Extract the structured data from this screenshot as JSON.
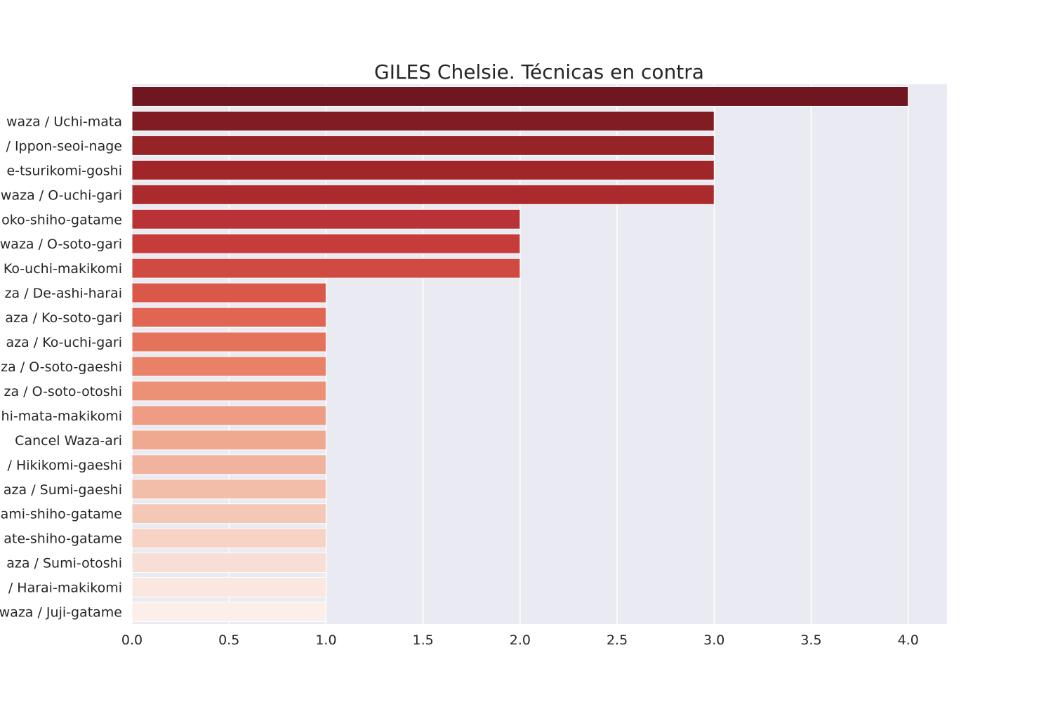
{
  "chart_data": {
    "type": "bar",
    "orientation": "horizontal",
    "title": "GILES Chelsie. Técnicas en contra",
    "xlabel": "",
    "ylabel": "",
    "xlim": [
      0,
      4.2
    ],
    "x_ticks": [
      "0.0",
      "0.5",
      "1.0",
      "1.5",
      "2.0",
      "2.5",
      "3.0",
      "3.5",
      "4.0"
    ],
    "grid": true,
    "legend": "none",
    "categories": [
      "",
      "waza / Uchi-mata",
      "/ Ippon-seoi-nage",
      "e-tsurikomi-goshi",
      "waza / O-uchi-gari",
      "oko-shiho-gatame",
      "waza / O-soto-gari",
      "Ko-uchi-makikomi",
      "za / De-ashi-harai",
      "aza / Ko-soto-gari",
      "aza / Ko-uchi-gari",
      "za / O-soto-gaeshi",
      "za / O-soto-otoshi",
      "hi-mata-makikomi",
      "Cancel Waza-ari",
      "/ Hikikomi-gaeshi",
      "aza / Sumi-gaeshi",
      "ami-shiho-gatame",
      "ate-shiho-gatame",
      "aza / Sumi-otoshi",
      "/ Harai-makikomi",
      "waza / Juji-gatame"
    ],
    "values": [
      4,
      3,
      3,
      3,
      3,
      2,
      2,
      2,
      1,
      1,
      1,
      1,
      1,
      1,
      1,
      1,
      1,
      1,
      1,
      1,
      1,
      1
    ],
    "colors": [
      "#6f1620",
      "#811c23",
      "#962326",
      "#a0262a",
      "#ab2a2e",
      "#b93336",
      "#c63c3a",
      "#cf4a40",
      "#d9584a",
      "#e06552",
      "#e5735c",
      "#e98168",
      "#ec9076",
      "#ee9c84",
      "#f0a991",
      "#f1b39e",
      "#f3bea9",
      "#f4c8b7",
      "#f6d3c5",
      "#f8dfd5",
      "#fae7df",
      "#fcefea"
    ],
    "background_color": "#eaeaf2",
    "grid_color": "#ffffff"
  }
}
